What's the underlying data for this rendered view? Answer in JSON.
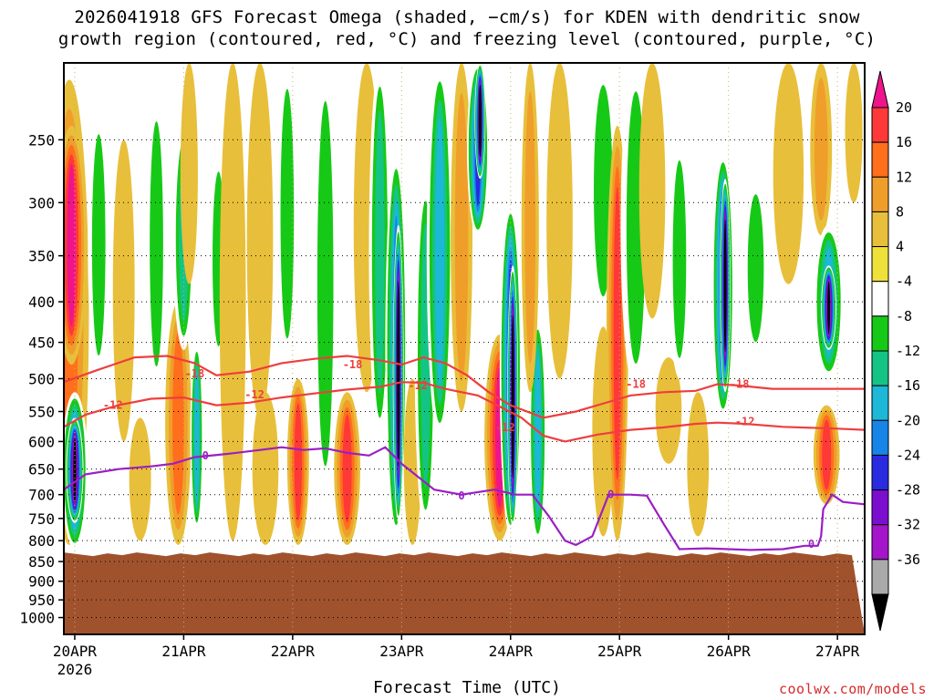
{
  "title_line1": "2026041918 GFS Forecast Omega (shaded, −cm/s) for KDEN with dendritic snow",
  "title_line2": "growth region (contoured, red, °C) and freezing level (contoured, purple, °C)",
  "credit": "coolwx.com/models",
  "colors": {
    "plot_border": "#000000",
    "ground": "#a0522d",
    "dendritic_contour": "#ee3e3e",
    "freezing_contour": "#9a1fc4"
  },
  "chart_data": {
    "type": "heatmap",
    "xlabel": "Forecast Time (UTC)",
    "ylabel": "",
    "x_ticks": [
      {
        "label": "20APR",
        "sub": "2026",
        "day": 0
      },
      {
        "label": "21APR",
        "sub": "",
        "day": 1
      },
      {
        "label": "22APR",
        "sub": "",
        "day": 2
      },
      {
        "label": "23APR",
        "sub": "",
        "day": 3
      },
      {
        "label": "24APR",
        "sub": "",
        "day": 4
      },
      {
        "label": "25APR",
        "sub": "",
        "day": 5
      },
      {
        "label": "26APR",
        "sub": "",
        "day": 6
      },
      {
        "label": "27APR",
        "sub": "",
        "day": 7
      }
    ],
    "xlim_days": [
      -0.1,
      7.25
    ],
    "y_ticks": [
      250,
      300,
      350,
      400,
      450,
      500,
      550,
      600,
      650,
      700,
      750,
      800,
      850,
      900,
      950,
      1000
    ],
    "ylim_hpa": [
      200,
      1050
    ],
    "y_scale": "log-pressure",
    "ground_top_hpa": 830,
    "grid": "dotted",
    "colorbar": {
      "labels": [
        20,
        16,
        12,
        8,
        4,
        -4,
        -8,
        -12,
        -16,
        -20,
        -24,
        -28,
        -32,
        -36
      ],
      "colors": [
        "#f0148c",
        "#ff3838",
        "#ff6f1c",
        "#f09e2a",
        "#e8bf3a",
        "#eee13a",
        "#ffffff",
        "#17c917",
        "#14c484",
        "#1db7d8",
        "#1784e8",
        "#2a2ae0",
        "#7c0fcf",
        "#a316c9",
        "#aaaaaa",
        "#000000"
      ]
    },
    "bands": [
      {
        "day": -0.05,
        "p1": 210,
        "p2": 810,
        "v": 14,
        "w": 0.18
      },
      {
        "day": -0.03,
        "p1": 240,
        "p2": 480,
        "v": 24,
        "w": 0.14
      },
      {
        "day": 0.0,
        "p1": 520,
        "p2": 820,
        "v": -22,
        "w": 0.12
      },
      {
        "day": 0.0,
        "p1": 560,
        "p2": 760,
        "v": -40,
        "w": 0.08
      },
      {
        "day": 0.22,
        "p1": 230,
        "p2": 500,
        "v": -10,
        "w": 0.1
      },
      {
        "day": 0.45,
        "p1": 250,
        "p2": 600,
        "v": 7,
        "w": 0.1
      },
      {
        "day": 0.6,
        "p1": 560,
        "p2": 800,
        "v": 7,
        "w": 0.1
      },
      {
        "day": 0.75,
        "p1": 220,
        "p2": 520,
        "v": -9,
        "w": 0.1
      },
      {
        "day": 0.95,
        "p1": 400,
        "p2": 810,
        "v": 15,
        "w": 0.12
      },
      {
        "day": 1.0,
        "p1": 240,
        "p2": 460,
        "v": -16,
        "w": 0.1
      },
      {
        "day": 1.05,
        "p1": 200,
        "p2": 380,
        "v": 6,
        "w": 0.08
      },
      {
        "day": 1.12,
        "p1": 450,
        "p2": 780,
        "v": -20,
        "w": 0.06
      },
      {
        "day": 1.32,
        "p1": 260,
        "p2": 480,
        "v": -10,
        "w": 0.09
      },
      {
        "day": 1.45,
        "p1": 200,
        "p2": 800,
        "v": 6,
        "w": 0.12
      },
      {
        "day": 1.7,
        "p1": 200,
        "p2": 560,
        "v": 6,
        "w": 0.12
      },
      {
        "day": 1.75,
        "p1": 520,
        "p2": 810,
        "v": 8,
        "w": 0.12
      },
      {
        "day": 1.95,
        "p1": 200,
        "p2": 480,
        "v": -10,
        "w": 0.1
      },
      {
        "day": 2.05,
        "p1": 500,
        "p2": 810,
        "v": 20,
        "w": 0.1
      },
      {
        "day": 2.3,
        "p1": 200,
        "p2": 720,
        "v": -10,
        "w": 0.12
      },
      {
        "day": 2.5,
        "p1": 520,
        "p2": 810,
        "v": 18,
        "w": 0.12
      },
      {
        "day": 2.68,
        "p1": 200,
        "p2": 520,
        "v": 6,
        "w": 0.12
      },
      {
        "day": 2.8,
        "p1": 200,
        "p2": 600,
        "v": -14,
        "w": 0.1
      },
      {
        "day": 2.95,
        "p1": 260,
        "p2": 800,
        "v": -24,
        "w": 0.1
      },
      {
        "day": 2.97,
        "p1": 320,
        "p2": 760,
        "v": -40,
        "w": 0.05
      },
      {
        "day": 3.1,
        "p1": 500,
        "p2": 810,
        "v": 8,
        "w": 0.08
      },
      {
        "day": 3.22,
        "p1": 280,
        "p2": 780,
        "v": -14,
        "w": 0.1
      },
      {
        "day": 3.35,
        "p1": 200,
        "p2": 600,
        "v": -18,
        "w": 0.12
      },
      {
        "day": 3.55,
        "p1": 200,
        "p2": 550,
        "v": 10,
        "w": 0.1
      },
      {
        "day": 3.7,
        "p1": 200,
        "p2": 330,
        "v": -28,
        "w": 0.1
      },
      {
        "day": 3.72,
        "p1": 200,
        "p2": 280,
        "v": -40,
        "w": 0.05
      },
      {
        "day": 3.9,
        "p1": 440,
        "p2": 800,
        "v": 22,
        "w": 0.14
      },
      {
        "day": 4.0,
        "p1": 300,
        "p2": 790,
        "v": -28,
        "w": 0.1
      },
      {
        "day": 4.02,
        "p1": 360,
        "p2": 770,
        "v": -40,
        "w": 0.05
      },
      {
        "day": 4.25,
        "p1": 420,
        "p2": 810,
        "v": -18,
        "w": 0.08
      },
      {
        "day": 4.18,
        "p1": 200,
        "p2": 520,
        "v": 12,
        "w": 0.08
      },
      {
        "day": 4.45,
        "p1": 200,
        "p2": 500,
        "v": 6,
        "w": 0.12
      },
      {
        "day": 4.85,
        "p1": 200,
        "p2": 420,
        "v": -10,
        "w": 0.14
      },
      {
        "day": 4.85,
        "p1": 430,
        "p2": 790,
        "v": 8,
        "w": 0.1
      },
      {
        "day": 4.98,
        "p1": 240,
        "p2": 800,
        "v": 18,
        "w": 0.1
      },
      {
        "day": 5.15,
        "p1": 200,
        "p2": 520,
        "v": -10,
        "w": 0.14
      },
      {
        "day": 5.3,
        "p1": 200,
        "p2": 420,
        "v": 6,
        "w": 0.12
      },
      {
        "day": 5.45,
        "p1": 470,
        "p2": 640,
        "v": 7,
        "w": 0.12
      },
      {
        "day": 5.55,
        "p1": 250,
        "p2": 500,
        "v": -9,
        "w": 0.1
      },
      {
        "day": 5.72,
        "p1": 520,
        "p2": 790,
        "v": 6,
        "w": 0.1
      },
      {
        "day": 5.95,
        "p1": 260,
        "p2": 560,
        "v": -26,
        "w": 0.1
      },
      {
        "day": 5.97,
        "p1": 280,
        "p2": 520,
        "v": -40,
        "w": 0.05
      },
      {
        "day": 6.25,
        "p1": 280,
        "p2": 470,
        "v": -10,
        "w": 0.12
      },
      {
        "day": 6.55,
        "p1": 200,
        "p2": 380,
        "v": 6,
        "w": 0.14
      },
      {
        "day": 6.85,
        "p1": 200,
        "p2": 330,
        "v": 10,
        "w": 0.1
      },
      {
        "day": 6.92,
        "p1": 320,
        "p2": 500,
        "v": -20,
        "w": 0.14
      },
      {
        "day": 6.92,
        "p1": 360,
        "p2": 460,
        "v": -40,
        "w": 0.07
      },
      {
        "day": 6.9,
        "p1": 540,
        "p2": 720,
        "v": 18,
        "w": 0.12
      },
      {
        "day": 7.15,
        "p1": 200,
        "p2": 300,
        "v": 8,
        "w": 0.08
      }
    ],
    "contours": {
      "minus18": {
        "color": "dendritic",
        "label": "-18",
        "pts": [
          [
            -0.1,
            505
          ],
          [
            0.2,
            488
          ],
          [
            0.55,
            470
          ],
          [
            0.85,
            468
          ],
          [
            1.1,
            478
          ],
          [
            1.3,
            495
          ],
          [
            1.6,
            490
          ],
          [
            1.9,
            478
          ],
          [
            2.2,
            472
          ],
          [
            2.5,
            468
          ],
          [
            2.8,
            474
          ],
          [
            3.0,
            480
          ],
          [
            3.2,
            470
          ],
          [
            3.4,
            478
          ],
          [
            3.6,
            495
          ],
          [
            3.8,
            520
          ],
          [
            4.0,
            540
          ],
          [
            4.3,
            560
          ],
          [
            4.6,
            550
          ],
          [
            4.9,
            535
          ],
          [
            5.1,
            525
          ],
          [
            5.4,
            520
          ],
          [
            5.7,
            518
          ],
          [
            5.9,
            508
          ],
          [
            6.1,
            510
          ],
          [
            6.4,
            515
          ],
          [
            6.8,
            515
          ],
          [
            7.25,
            515
          ]
        ],
        "labels": [
          [
            1.1,
            493,
            "-18"
          ],
          [
            2.55,
            480,
            "-18"
          ],
          [
            5.15,
            508,
            "-18"
          ],
          [
            6.1,
            508,
            "-18"
          ]
        ]
      },
      "minus12": {
        "color": "dendritic",
        "label": "-12",
        "pts": [
          [
            -0.1,
            575
          ],
          [
            0.1,
            555
          ],
          [
            0.4,
            540
          ],
          [
            0.7,
            530
          ],
          [
            1.0,
            528
          ],
          [
            1.3,
            540
          ],
          [
            1.6,
            536
          ],
          [
            1.9,
            528
          ],
          [
            2.2,
            522
          ],
          [
            2.5,
            516
          ],
          [
            2.8,
            512
          ],
          [
            3.0,
            505
          ],
          [
            3.2,
            506
          ],
          [
            3.4,
            515
          ],
          [
            3.7,
            525
          ],
          [
            3.9,
            542
          ],
          [
            4.1,
            560
          ],
          [
            4.3,
            590
          ],
          [
            4.5,
            600
          ],
          [
            4.8,
            588
          ],
          [
            5.1,
            580
          ],
          [
            5.4,
            576
          ],
          [
            5.7,
            570
          ],
          [
            5.9,
            568
          ],
          [
            6.15,
            570
          ],
          [
            6.5,
            575
          ],
          [
            7.0,
            578
          ],
          [
            7.25,
            580
          ]
        ],
        "labels": [
          [
            0.35,
            540,
            "-12"
          ],
          [
            1.65,
            524,
            "-12"
          ],
          [
            3.15,
            510,
            "-12"
          ],
          [
            3.95,
            576,
            "-12"
          ],
          [
            6.15,
            566,
            "-12"
          ]
        ]
      },
      "zero": {
        "color": "freezing",
        "label": "0",
        "pts": [
          [
            -0.1,
            690
          ],
          [
            0.1,
            660
          ],
          [
            0.4,
            650
          ],
          [
            0.7,
            645
          ],
          [
            0.9,
            640
          ],
          [
            1.1,
            628
          ],
          [
            1.4,
            622
          ],
          [
            1.7,
            615
          ],
          [
            1.9,
            610
          ],
          [
            2.1,
            615
          ],
          [
            2.3,
            612
          ],
          [
            2.5,
            620
          ],
          [
            2.7,
            625
          ],
          [
            2.85,
            610
          ],
          [
            3.0,
            640
          ],
          [
            3.3,
            690
          ],
          [
            3.55,
            700
          ],
          [
            3.85,
            690
          ],
          [
            4.05,
            700
          ],
          [
            4.2,
            700
          ],
          [
            4.35,
            745
          ],
          [
            4.5,
            800
          ],
          [
            4.6,
            810
          ],
          [
            4.75,
            790
          ],
          [
            4.9,
            700
          ],
          [
            5.1,
            700
          ],
          [
            5.25,
            702
          ],
          [
            5.4,
            760
          ],
          [
            5.55,
            820
          ],
          [
            5.8,
            818
          ],
          [
            6.2,
            822
          ],
          [
            6.5,
            820
          ],
          [
            6.7,
            812
          ],
          [
            6.82,
            812
          ],
          [
            6.85,
            790
          ],
          [
            6.87,
            730
          ],
          [
            6.95,
            700
          ],
          [
            7.05,
            715
          ],
          [
            7.25,
            720
          ]
        ],
        "labels": [
          [
            1.2,
            625,
            "0"
          ],
          [
            3.55,
            702,
            "0"
          ],
          [
            4.92,
            700,
            "0"
          ],
          [
            6.76,
            808,
            "0"
          ]
        ]
      }
    }
  }
}
